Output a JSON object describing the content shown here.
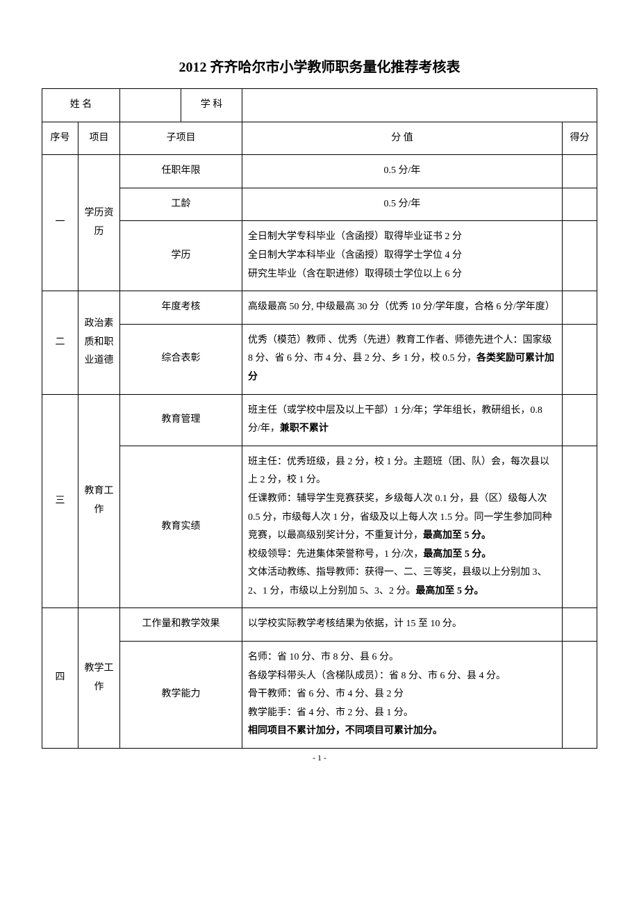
{
  "title": "2012 齐齐哈尔市小学教师职务量化推荐考核表",
  "header": {
    "name_label": "姓 名",
    "name_value": "",
    "subject_label": "学 科",
    "subject_value": ""
  },
  "columns": {
    "seq": "序号",
    "item": "项目",
    "sub": "子项目",
    "desc": "分    值",
    "score": "得分"
  },
  "rows": {
    "r1": {
      "seq": "一",
      "item": "学历资历",
      "sub1": "任职年限",
      "desc1": "0.5 分/年",
      "sub2": "工龄",
      "desc2": "0.5 分/年",
      "sub3": "学历",
      "desc3": "全日制大学专科毕业（含函授）取得毕业证书 2 分\n全日制大学本科毕业（含函授）取得学士学位 4 分\n研究生毕业（含在职进修）取得硕士学位以上 6 分"
    },
    "r2": {
      "seq": "二",
      "item": "政治素质和职业道德",
      "sub1": "年度考核",
      "desc1": "高级最高 50 分, 中级最高 30 分（优秀 10 分/学年度，合格 6 分/学年度）",
      "sub2": "综合表彰",
      "desc2_pre": "优秀（模范）教师 、优秀（先进）教育工作者、师德先进个人：国家级 8 分、省 6 分、市 4 分、县 2 分、乡 1 分，校 0.5 分，",
      "desc2_bold": "各类奖励可累计加分"
    },
    "r3": {
      "seq": "三",
      "item": "教育工作",
      "sub1": "教育管理",
      "desc1_pre": "班主任（或学校中层及以上干部）1 分/年；学年组长，教研组长，0.8 分/年，",
      "desc1_bold": "兼职不累计",
      "sub2": "教育实绩",
      "desc2_l1": "班主任：优秀班级，县 2 分，校 1 分。主题班（团、队）会，每次县以上 2 分，校 1 分。",
      "desc2_l2a": "任课教师：辅导学生竞赛获奖，乡级每人次 0.1 分，县（区）级每人次 0.5 分，市级每人次 1 分，省级及以上每人次 1.5 分。同一学生参加同种竞赛，以最高级别奖计分，不重复计分，",
      "desc2_l2b": "最高加至 5 分。",
      "desc2_l3a": "校级领导：先进集体荣誉称号，1 分/次，",
      "desc2_l3b": "最高加至 5 分。",
      "desc2_l4a": "文体活动教练、指导教师：获得一、二、三等奖，县级以上分别加 3、2、1 分，市级以上分别加 5、3、2 分。",
      "desc2_l4b": "最高加至 5 分。"
    },
    "r4": {
      "seq": "四",
      "item": "教学工作",
      "sub1": "工作量和教学效果",
      "desc1": "以学校实际教学考核结果为依据，计 15 至 10 分。",
      "sub2": "教学能力",
      "desc2_l1": "名师：省 10 分、市 8 分、县 6 分。",
      "desc2_l2": "各级学科带头人（含梯队成员）：省 8 分、市 6 分、县 4 分。",
      "desc2_l3": "骨干教师：省 6 分、市 4 分、县 2 分",
      "desc2_l4": "教学能手：省 4 分、市 2 分、县 1 分。",
      "desc2_l5": "相同项目不累计加分，不同项目可累计加分。"
    }
  },
  "page_number": "- 1 -"
}
